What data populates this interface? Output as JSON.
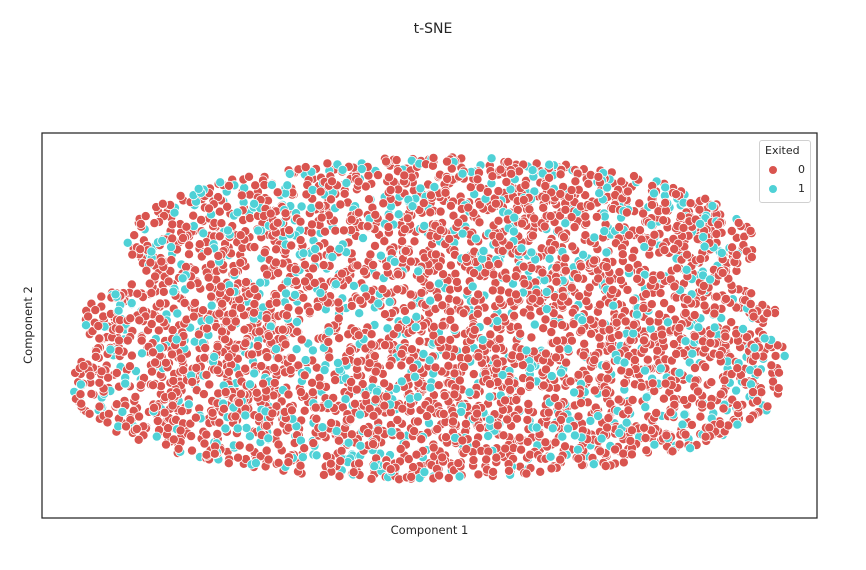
{
  "chart_data": {
    "type": "scatter",
    "title": "t-SNE",
    "xlabel": "Component 1",
    "ylabel": "Component 2",
    "xticks": [],
    "yticks": [],
    "grid": false,
    "legend": {
      "title": "Exited",
      "placement": "top-right",
      "entries": [
        {
          "label": "0",
          "color": "#d9544f"
        },
        {
          "label": "1",
          "color": "#4fd1d6"
        }
      ]
    },
    "series": [
      {
        "name": "0",
        "color": "#d9544f",
        "approx_share": 0.8
      },
      {
        "name": "1",
        "color": "#4fd1d6",
        "approx_share": 0.2
      }
    ],
    "marker_edge_color": "#ffffff"
  }
}
